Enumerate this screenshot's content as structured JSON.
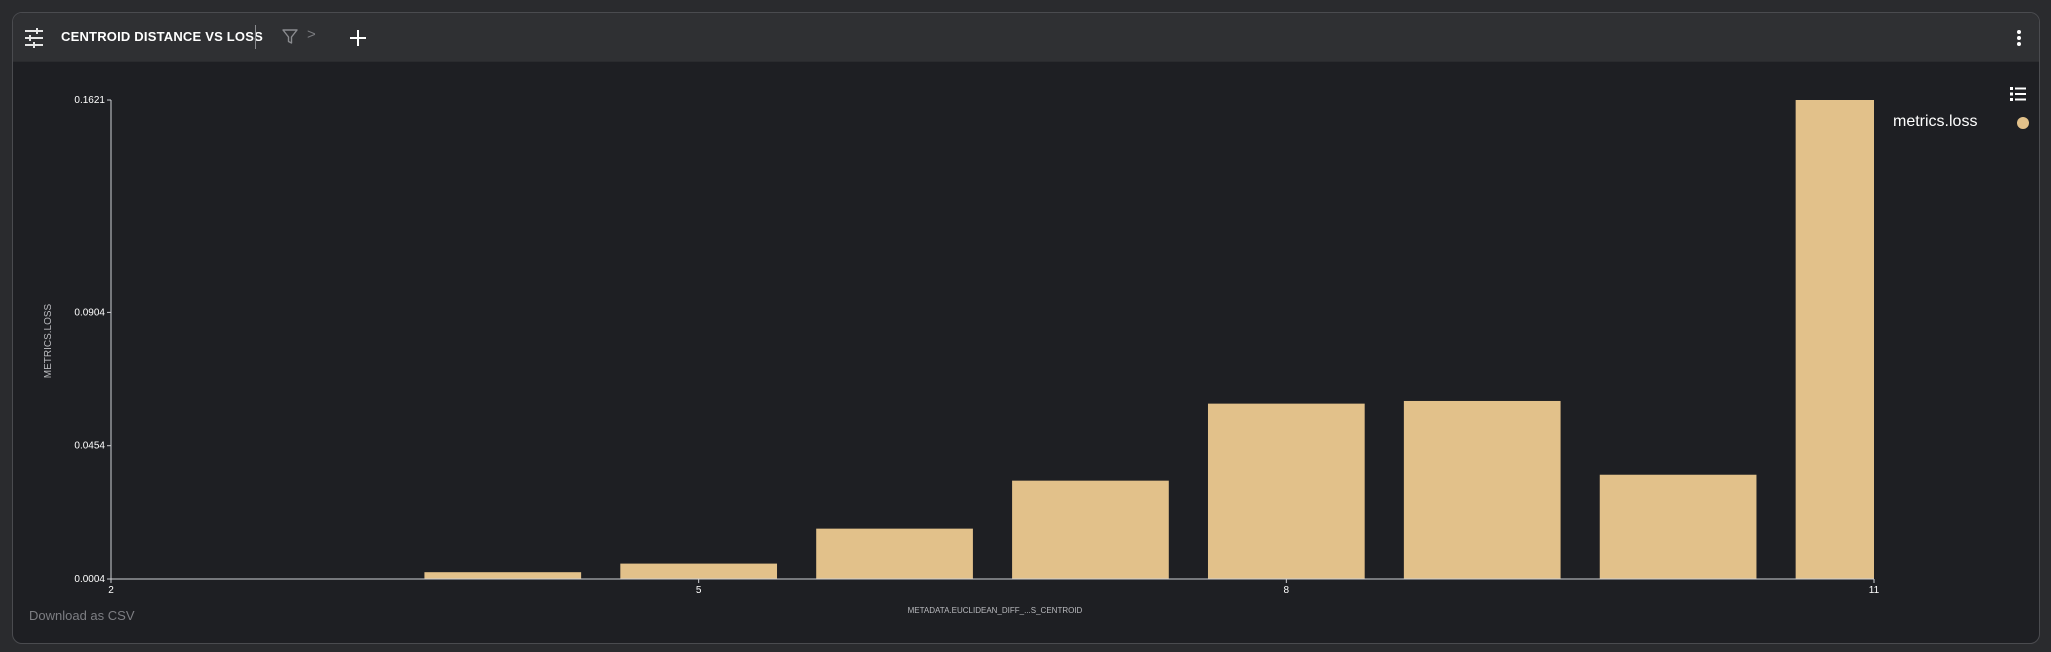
{
  "header": {
    "title": "CENTROID DISTANCE VS LOSS",
    "breadcrumb_separator": ">",
    "icons": [
      "sliders-icon",
      "filter-icon",
      "plus-icon",
      "kebab-menu-icon"
    ]
  },
  "legend": {
    "label": "metrics.loss",
    "toggle_icon": "list-icon",
    "color": "#e2c18a"
  },
  "footer": {
    "download_label": "Download as CSV"
  },
  "colors": {
    "background": "#1e1f23",
    "toolbar": "#2f3033",
    "bar": "#e2c18a",
    "axis": "#cfd0d4",
    "text": "#ffffff"
  },
  "chart_data": {
    "type": "bar",
    "xlabel": "METADATA.EUCLIDEAN_DIFF_...S_CENTROID",
    "ylabel": "METRICS.LOSS",
    "xlim": [
      2,
      11
    ],
    "ylim": [
      0.0004,
      0.1621
    ],
    "x_ticks": [
      "2",
      "5",
      "8",
      "11"
    ],
    "y_ticks": [
      "0.0004",
      "0.0454",
      "0.0904",
      "0.1621"
    ],
    "series": [
      {
        "name": "metrics.loss",
        "bins": [
          {
            "x0": 3.6,
            "x1": 4.4,
            "value": 0.0027
          },
          {
            "x0": 4.6,
            "x1": 5.4,
            "value": 0.0056
          },
          {
            "x0": 5.6,
            "x1": 6.4,
            "value": 0.0174
          },
          {
            "x0": 6.6,
            "x1": 7.4,
            "value": 0.0336
          },
          {
            "x0": 7.6,
            "x1": 8.4,
            "value": 0.0596
          },
          {
            "x0": 8.6,
            "x1": 9.4,
            "value": 0.0605
          },
          {
            "x0": 9.6,
            "x1": 10.4,
            "value": 0.0356
          },
          {
            "x0": 10.6,
            "x1": 11.0,
            "value": 0.1621
          }
        ]
      }
    ]
  }
}
